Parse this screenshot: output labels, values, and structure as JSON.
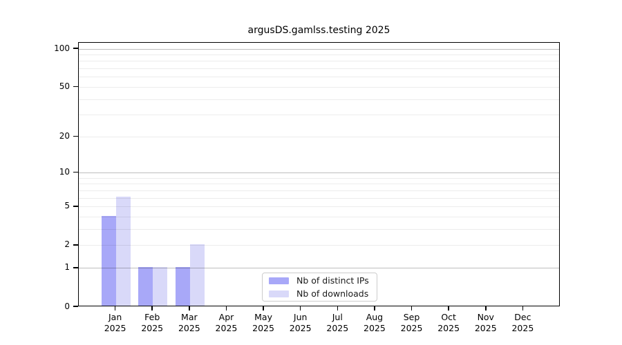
{
  "title": "argusDS.gamlss.testing 2025",
  "chart_data": {
    "type": "bar",
    "title": "argusDS.gamlss.testing 2025",
    "xlabel": "",
    "ylabel": "",
    "yscale": "log1p",
    "ylim": [
      0,
      100
    ],
    "yticks": [
      0,
      1,
      2,
      5,
      10,
      20,
      50,
      100
    ],
    "grid": true,
    "grid_minor_values": [
      2,
      3,
      4,
      5,
      6,
      7,
      8,
      9,
      20,
      30,
      40,
      50,
      60,
      70,
      80,
      90
    ],
    "grid_major_values": [
      1,
      10,
      100
    ],
    "categories": [
      "Jan",
      "Feb",
      "Mar",
      "Apr",
      "May",
      "Jun",
      "Jul",
      "Aug",
      "Sep",
      "Oct",
      "Nov",
      "Dec"
    ],
    "category_year": "2025",
    "series": [
      {
        "name": "Nb of distinct IPs",
        "color": "#a8a8f8",
        "values": [
          4,
          1,
          1,
          0,
          0,
          0,
          0,
          0,
          0,
          0,
          0,
          0
        ]
      },
      {
        "name": "Nb of downloads",
        "color": "#d9d9f9",
        "values": [
          6,
          1,
          2,
          0,
          0,
          0,
          0,
          0,
          0,
          0,
          0,
          0
        ]
      }
    ],
    "legend_position": "lower center"
  },
  "colors": {
    "spine": "#000000",
    "grid_minor": "#ececec",
    "grid_major": "#bdbdbd",
    "legend_border": "#cccccc"
  }
}
